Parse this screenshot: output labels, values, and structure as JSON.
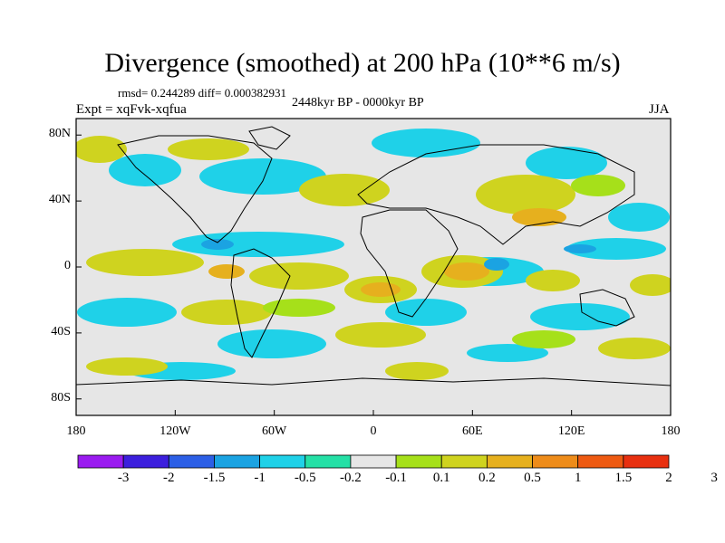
{
  "title": "Divergence (smoothed) at 200 hPa (10**6 m/s)",
  "stats": "rmsd= 0.244289 diff= 0.000382931",
  "period": "2448kyr BP - 0000kyr BP",
  "experiment": "Expt = xqFvk-xqfua",
  "season": "JJA",
  "axes": {
    "y_labels": [
      "80N",
      "40N",
      "0",
      "40S",
      "80S"
    ],
    "x_labels": [
      "180",
      "120W",
      "60W",
      "0",
      "60E",
      "120E",
      "180"
    ]
  },
  "colorbar": {
    "labels": [
      "-3",
      "-2",
      "-1.5",
      "-1",
      "-0.5",
      "-0.2",
      "-0.1",
      "0.1",
      "0.2",
      "0.5",
      "1",
      "1.5",
      "2",
      "3"
    ],
    "colors": [
      "#9a1bf0",
      "#3c1fdd",
      "#2c5fe6",
      "#1ba3e2",
      "#1fd1e8",
      "#25e0a6",
      "#e6e6e6",
      "#a6e01a",
      "#cfd31f",
      "#e6b01e",
      "#ee8c1a",
      "#ee5a12",
      "#e83010"
    ]
  },
  "colors": {
    "background": "#ffffff",
    "map_fill": "#e6e6e6",
    "coast": "#000000"
  }
}
